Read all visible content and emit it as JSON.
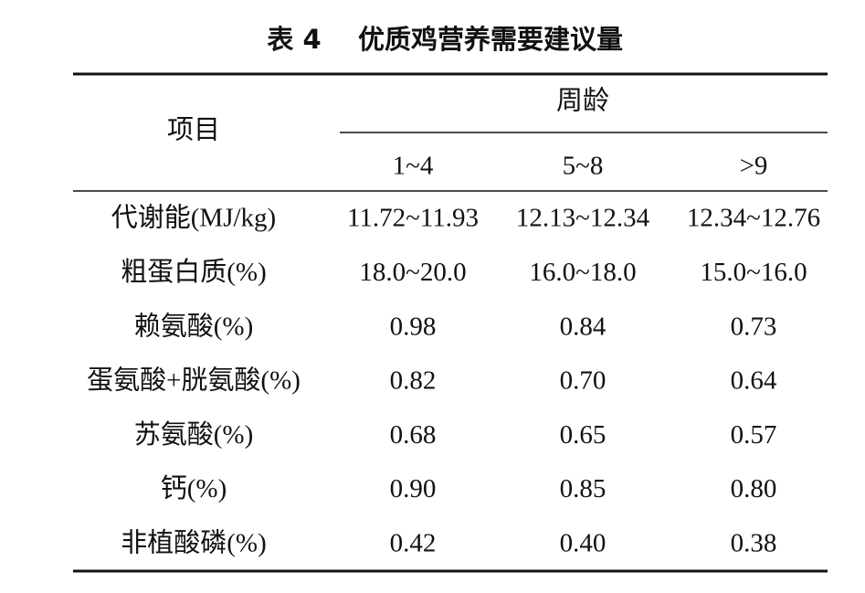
{
  "title": {
    "label": "表 4",
    "text": "优质鸡营养需要建议量"
  },
  "table": {
    "header": {
      "item": "项目",
      "group": "周龄",
      "columns": [
        "1~4",
        "5~8",
        ">9"
      ]
    },
    "rows": [
      [
        "代谢能(MJ/kg)",
        "11.72~11.93",
        "12.13~12.34",
        "12.34~12.76"
      ],
      [
        "粗蛋白质(%)",
        "18.0~20.0",
        "16.0~18.0",
        "15.0~16.0"
      ],
      [
        "赖氨酸(%)",
        "0.98",
        "0.84",
        "0.73"
      ],
      [
        "蛋氨酸+胱氨酸(%)",
        "0.82",
        "0.70",
        "0.64"
      ],
      [
        "苏氨酸(%)",
        "0.68",
        "0.65",
        "0.57"
      ],
      [
        "钙(%)",
        "0.90",
        "0.85",
        "0.80"
      ],
      [
        "非植酸磷(%)",
        "0.42",
        "0.40",
        "0.38"
      ]
    ]
  }
}
